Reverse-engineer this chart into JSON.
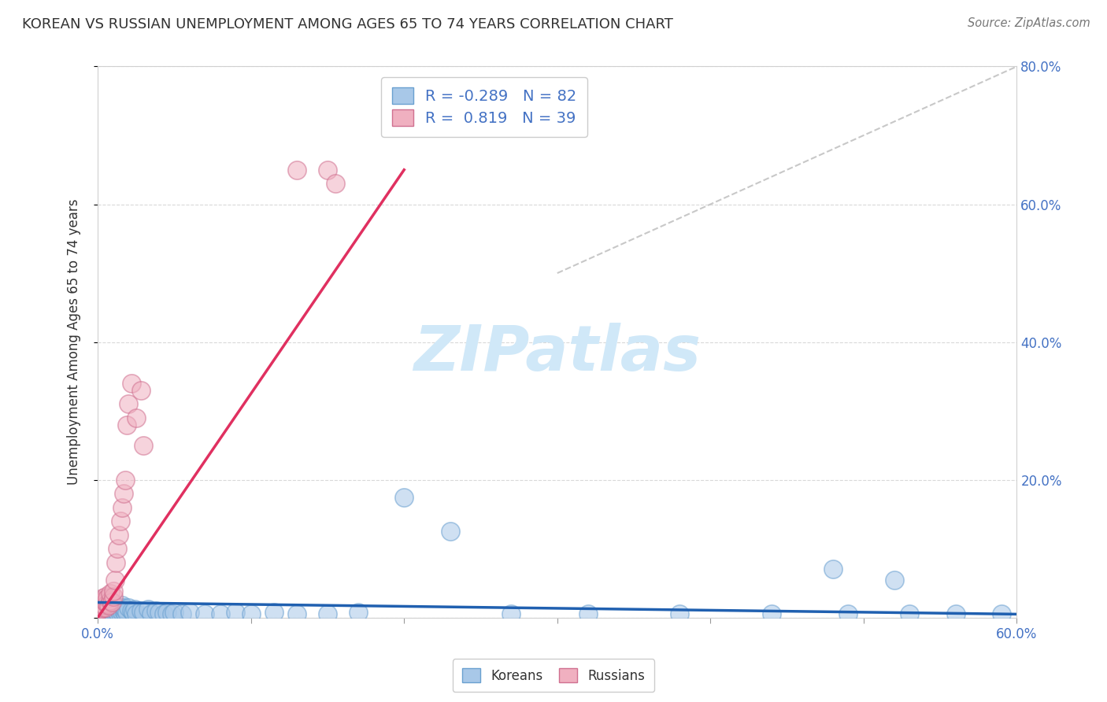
{
  "title": "KOREAN VS RUSSIAN UNEMPLOYMENT AMONG AGES 65 TO 74 YEARS CORRELATION CHART",
  "source": "Source: ZipAtlas.com",
  "ylabel": "Unemployment Among Ages 65 to 74 years",
  "xlim": [
    0.0,
    0.6
  ],
  "ylim": [
    0.0,
    0.8
  ],
  "xtick_positions": [
    0.0,
    0.1,
    0.2,
    0.3,
    0.4,
    0.5,
    0.6
  ],
  "xtick_labels": [
    "0.0%",
    "",
    "",
    "",
    "",
    "",
    "60.0%"
  ],
  "ytick_positions": [
    0.0,
    0.2,
    0.4,
    0.6,
    0.8
  ],
  "ytick_labels": [
    "",
    "20.0%",
    "40.0%",
    "60.0%",
    "80.0%"
  ],
  "korean_R": -0.289,
  "korean_N": 82,
  "russian_R": 0.819,
  "russian_N": 39,
  "korean_color": "#a8c8e8",
  "korean_edge_color": "#6aa0d0",
  "korean_line_color": "#2060b0",
  "russian_color": "#f0b0c0",
  "russian_edge_color": "#d07090",
  "russian_line_color": "#e03060",
  "ref_line_color": "#c8c8c8",
  "watermark_text": "ZIPatlas",
  "watermark_color": "#d0e8f8",
  "legend_label_korean": "Koreans",
  "legend_label_russian": "Russians",
  "korean_x": [
    0.0,
    0.001,
    0.001,
    0.002,
    0.002,
    0.002,
    0.002,
    0.003,
    0.003,
    0.003,
    0.004,
    0.004,
    0.004,
    0.005,
    0.005,
    0.005,
    0.005,
    0.006,
    0.006,
    0.006,
    0.007,
    0.007,
    0.007,
    0.008,
    0.008,
    0.008,
    0.009,
    0.009,
    0.01,
    0.01,
    0.011,
    0.011,
    0.012,
    0.012,
    0.013,
    0.014,
    0.015,
    0.015,
    0.016,
    0.016,
    0.017,
    0.017,
    0.018,
    0.018,
    0.019,
    0.02,
    0.022,
    0.023,
    0.024,
    0.025,
    0.028,
    0.03,
    0.033,
    0.035,
    0.038,
    0.04,
    0.043,
    0.045,
    0.048,
    0.05,
    0.055,
    0.06,
    0.07,
    0.08,
    0.09,
    0.1,
    0.115,
    0.13,
    0.15,
    0.17,
    0.2,
    0.23,
    0.27,
    0.32,
    0.38,
    0.44,
    0.49,
    0.53,
    0.56,
    0.59,
    0.48,
    0.52
  ],
  "korean_y": [
    0.02,
    0.015,
    0.025,
    0.01,
    0.018,
    0.022,
    0.005,
    0.012,
    0.02,
    0.008,
    0.015,
    0.01,
    0.018,
    0.008,
    0.012,
    0.02,
    0.005,
    0.01,
    0.015,
    0.022,
    0.008,
    0.015,
    0.005,
    0.012,
    0.018,
    0.006,
    0.01,
    0.02,
    0.005,
    0.015,
    0.008,
    0.018,
    0.01,
    0.015,
    0.008,
    0.012,
    0.005,
    0.015,
    0.008,
    0.018,
    0.01,
    0.015,
    0.005,
    0.012,
    0.008,
    0.015,
    0.01,
    0.008,
    0.012,
    0.005,
    0.01,
    0.008,
    0.012,
    0.005,
    0.01,
    0.008,
    0.005,
    0.008,
    0.005,
    0.008,
    0.005,
    0.008,
    0.005,
    0.005,
    0.008,
    0.005,
    0.008,
    0.005,
    0.005,
    0.008,
    0.175,
    0.125,
    0.005,
    0.005,
    0.005,
    0.005,
    0.005,
    0.005,
    0.005,
    0.005,
    0.07,
    0.055
  ],
  "russian_x": [
    0.0,
    0.001,
    0.001,
    0.002,
    0.002,
    0.002,
    0.003,
    0.003,
    0.003,
    0.004,
    0.004,
    0.005,
    0.005,
    0.005,
    0.006,
    0.006,
    0.007,
    0.008,
    0.008,
    0.009,
    0.01,
    0.01,
    0.011,
    0.012,
    0.013,
    0.014,
    0.015,
    0.016,
    0.017,
    0.018,
    0.019,
    0.02,
    0.022,
    0.025,
    0.028,
    0.03,
    0.13,
    0.15,
    0.155
  ],
  "russian_y": [
    0.01,
    0.015,
    0.02,
    0.012,
    0.018,
    0.025,
    0.015,
    0.02,
    0.028,
    0.018,
    0.025,
    0.015,
    0.022,
    0.03,
    0.02,
    0.028,
    0.018,
    0.025,
    0.035,
    0.022,
    0.03,
    0.038,
    0.055,
    0.08,
    0.1,
    0.12,
    0.14,
    0.16,
    0.18,
    0.2,
    0.28,
    0.31,
    0.34,
    0.29,
    0.33,
    0.25,
    0.65,
    0.65,
    0.63
  ],
  "korean_trend_x": [
    0.0,
    0.6
  ],
  "korean_trend_y": [
    0.022,
    0.005
  ],
  "russian_trend_x": [
    0.0,
    0.2
  ],
  "russian_trend_y": [
    0.0,
    0.65
  ],
  "ref_line_x": [
    0.3,
    0.6
  ],
  "ref_line_y": [
    0.5,
    0.8
  ]
}
